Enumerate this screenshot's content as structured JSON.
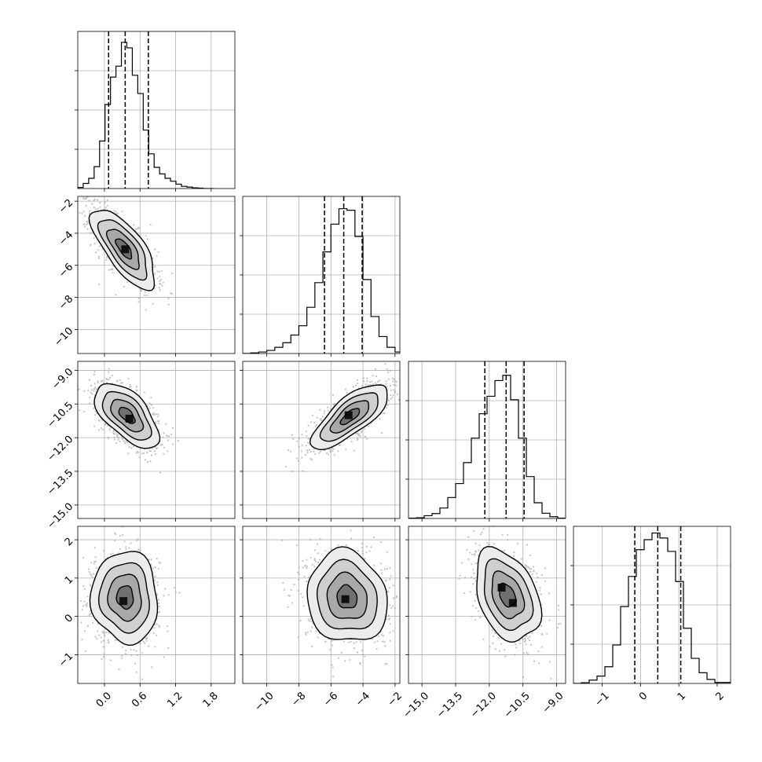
{
  "chart_data": {
    "type": "corner",
    "title": "",
    "num_params": 4,
    "grid": true,
    "axes": [
      {
        "range": [
          -0.45,
          2.2
        ],
        "ticks": [
          0.0,
          0.6,
          1.2,
          1.8
        ],
        "tick_labels": [
          "0.0",
          "0.6",
          "1.2",
          "1.8"
        ],
        "quantiles": [
          0.07,
          0.35,
          0.74
        ],
        "hist_edges": [
          -0.45,
          -0.358,
          -0.266,
          -0.174,
          -0.082,
          0.01,
          0.102,
          0.194,
          0.286,
          0.378,
          0.47,
          0.562,
          0.654,
          0.746,
          0.838,
          0.93,
          1.022,
          1.114,
          1.206,
          1.298,
          1.39,
          1.482,
          1.574,
          1.666,
          1.758,
          1.85
        ],
        "hist_counts": [
          3,
          14,
          28,
          60,
          130,
          230,
          305,
          335,
          400,
          385,
          310,
          260,
          160,
          95,
          58,
          40,
          28,
          20,
          12,
          6,
          4,
          2,
          1,
          0,
          0
        ],
        "hist_max": 430
      },
      {
        "range": [
          -11.5,
          -1.7
        ],
        "ticks": [
          -10,
          -8,
          -6,
          -4,
          -2
        ],
        "tick_labels": [
          "−10",
          "−8",
          "−6",
          "−4",
          "−2"
        ],
        "quantiles": [
          -6.4,
          -5.2,
          -4.05
        ],
        "hist_edges": [
          -11.5,
          -11.0,
          -10.5,
          -10.0,
          -9.5,
          -9.0,
          -8.5,
          -8.0,
          -7.5,
          -7.0,
          -6.5,
          -6.0,
          -5.5,
          -5.0,
          -4.5,
          -4.0,
          -3.5,
          -3.0,
          -2.5,
          -2.0,
          -1.7
        ],
        "hist_counts": [
          0,
          2,
          5,
          10,
          20,
          35,
          60,
          90,
          150,
          230,
          330,
          420,
          470,
          465,
          380,
          240,
          120,
          55,
          20,
          5
        ],
        "hist_max": 510
      },
      {
        "range": [
          -15.6,
          -8.6
        ],
        "ticks": [
          -15.0,
          -13.5,
          -12.0,
          -10.5,
          -9.0
        ],
        "tick_labels": [
          "−15.0",
          "−13.5",
          "−12.0",
          "−10.5",
          "−9.0"
        ],
        "quantiles": [
          -12.2,
          -11.25,
          -10.45
        ],
        "hist_edges": [
          -15.6,
          -15.25,
          -14.9,
          -14.55,
          -14.2,
          -13.85,
          -13.5,
          -13.15,
          -12.8,
          -12.45,
          -12.1,
          -11.75,
          -11.4,
          -11.05,
          -10.7,
          -10.35,
          -10.0,
          -9.65,
          -9.3,
          -8.95,
          -8.6
        ],
        "hist_counts": [
          1,
          2,
          8,
          14,
          30,
          60,
          100,
          160,
          230,
          300,
          350,
          395,
          410,
          340,
          230,
          120,
          45,
          15,
          5,
          1
        ],
        "hist_max": 450
      },
      {
        "range": [
          -1.75,
          2.35
        ],
        "ticks": [
          -1,
          0,
          1,
          2
        ],
        "tick_labels": [
          "−1",
          "0",
          "1",
          "2"
        ],
        "quantiles": [
          -0.15,
          0.45,
          1.05
        ],
        "hist_edges": [
          -1.75,
          -1.545,
          -1.34,
          -1.135,
          -0.93,
          -0.725,
          -0.52,
          -0.315,
          -0.11,
          0.095,
          0.3,
          0.505,
          0.71,
          0.915,
          1.12,
          1.325,
          1.53,
          1.735,
          1.94,
          2.145,
          2.35
        ],
        "hist_counts": [
          0,
          2,
          10,
          22,
          50,
          115,
          230,
          320,
          400,
          430,
          450,
          435,
          395,
          305,
          165,
          75,
          32,
          12,
          3,
          3
        ],
        "hist_max": 470
      }
    ],
    "pairs": [
      {
        "row": 1,
        "col": 0,
        "center": [
          0.33,
          -4.95
        ],
        "sigma": [
          0.27,
          1.25
        ],
        "rho": -0.72,
        "modes": [
          [
            0.35,
            -5.0
          ]
        ]
      },
      {
        "row": 2,
        "col": 0,
        "center": [
          0.38,
          -11.0
        ],
        "sigma": [
          0.27,
          0.72
        ],
        "rho": -0.6,
        "modes": [
          [
            0.42,
            -11.15
          ]
        ]
      },
      {
        "row": 2,
        "col": 1,
        "center": [
          -4.8,
          -11.05
        ],
        "sigma": [
          1.2,
          0.72
        ],
        "rho": 0.75,
        "modes": [
          [
            -4.9,
            -11.0
          ]
        ]
      },
      {
        "row": 3,
        "col": 0,
        "center": [
          0.35,
          0.5
        ],
        "sigma": [
          0.28,
          0.6
        ],
        "rho": -0.05,
        "modes": [
          [
            0.32,
            0.4
          ]
        ]
      },
      {
        "row": 3,
        "col": 1,
        "center": [
          -5.0,
          0.5
        ],
        "sigma": [
          1.25,
          0.6
        ],
        "rho": -0.1,
        "modes": [
          [
            -5.1,
            0.45
          ]
        ]
      },
      {
        "row": 3,
        "col": 2,
        "center": [
          -11.2,
          0.55
        ],
        "sigma": [
          0.72,
          0.6
        ],
        "rho": -0.35,
        "modes": [
          [
            -11.45,
            0.75
          ],
          [
            -10.95,
            0.35
          ]
        ]
      }
    ],
    "contour_levels_sigma": [
      0.5,
      1.0,
      1.5,
      2.0
    ]
  }
}
